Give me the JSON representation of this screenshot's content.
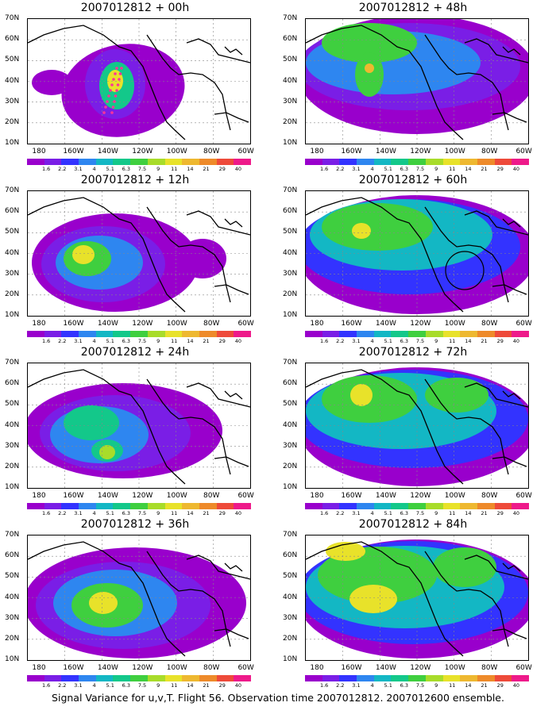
{
  "caption": "Signal Variance for u,v,T. Flight 56. Observation time 2007012812. 2007012600 ensemble.",
  "lat_labels": [
    "70N",
    "60N",
    "50N",
    "40N",
    "30N",
    "20N",
    "10N"
  ],
  "lon_labels": [
    "180",
    "160W",
    "140W",
    "120W",
    "100W",
    "80W",
    "60W"
  ],
  "colorbar": {
    "labels": [
      "1.6",
      "2.2",
      "3.1",
      "4",
      "5.1",
      "6.3",
      "7.5",
      "9",
      "11",
      "14",
      "21",
      "29",
      "40"
    ],
    "colors": [
      "#9900cc",
      "#7a1ee6",
      "#3333ff",
      "#2e86f0",
      "#13b7c4",
      "#13c88a",
      "#3fcf3f",
      "#a8dc2a",
      "#e8e22a",
      "#eeb830",
      "#ee8a2a",
      "#ee4a3a",
      "#ee1a8a"
    ]
  },
  "panels": [
    {
      "title": "2007012812 + 00h",
      "col": 0,
      "row": 0
    },
    {
      "title": "2007012812 + 12h",
      "col": 0,
      "row": 1
    },
    {
      "title": "2007012812 + 24h",
      "col": 0,
      "row": 2
    },
    {
      "title": "2007012812 + 36h",
      "col": 0,
      "row": 3
    },
    {
      "title": "2007012812 + 48h",
      "col": 1,
      "row": 0
    },
    {
      "title": "2007012812 + 60h",
      "col": 1,
      "row": 1
    },
    {
      "title": "2007012812 + 72h",
      "col": 1,
      "row": 2
    },
    {
      "title": "2007012812 + 84h",
      "col": 1,
      "row": 3
    }
  ]
}
